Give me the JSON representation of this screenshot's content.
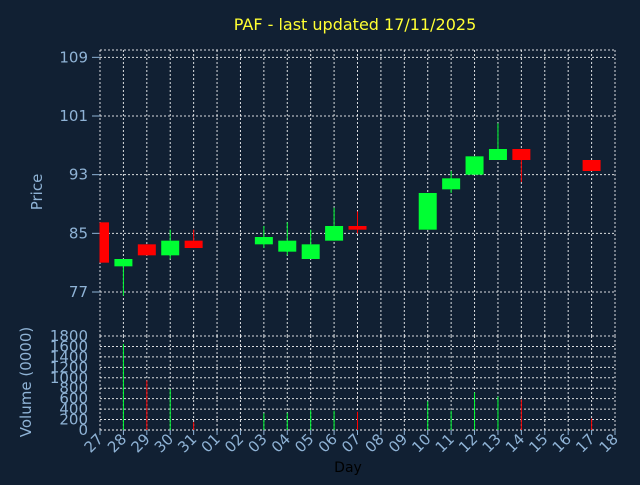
{
  "chart_data": {
    "type": "candlestick",
    "title": "PAF - last updated 17/11/2025",
    "xlabel": "Day",
    "colors": {
      "background": "#112033",
      "up": "#00ff33",
      "down": "#ff0000",
      "grid": "#ffffff",
      "axis_text": "#8fb3d6",
      "title": "#ffff33"
    },
    "x_ticks": [
      "27",
      "28",
      "29",
      "30",
      "31",
      "01",
      "02",
      "03",
      "04",
      "05",
      "06",
      "07",
      "08",
      "09",
      "10",
      "11",
      "12",
      "13",
      "14",
      "15",
      "16",
      "17",
      "18"
    ],
    "price_panel": {
      "ylabel": "Price",
      "ylim": [
        71,
        110
      ],
      "ticks": [
        109,
        101,
        93,
        85,
        77
      ],
      "candles": [
        {
          "x": "27",
          "open": 86.5,
          "high": 86.5,
          "low": 81.0,
          "close": 81.0
        },
        {
          "x": "28",
          "open": 80.5,
          "high": 81.5,
          "low": 76.5,
          "close": 81.5
        },
        {
          "x": "29",
          "open": 83.5,
          "high": 83.5,
          "low": 82.0,
          "close": 82.0
        },
        {
          "x": "30",
          "open": 82.0,
          "high": 85.5,
          "low": 81.5,
          "close": 84.0
        },
        {
          "x": "31",
          "open": 84.0,
          "high": 85.5,
          "low": 83.0,
          "close": 83.0
        },
        {
          "x": "03",
          "open": 83.5,
          "high": 86.0,
          "low": 83.0,
          "close": 84.5
        },
        {
          "x": "04",
          "open": 82.5,
          "high": 86.5,
          "low": 82.0,
          "close": 84.0
        },
        {
          "x": "05",
          "open": 81.5,
          "high": 85.5,
          "low": 81.5,
          "close": 83.5
        },
        {
          "x": "06",
          "open": 84.0,
          "high": 88.5,
          "low": 84.0,
          "close": 86.0
        },
        {
          "x": "07",
          "open": 86.0,
          "high": 88.0,
          "low": 85.0,
          "close": 85.5
        },
        {
          "x": "10",
          "open": 85.5,
          "high": 90.5,
          "low": 85.5,
          "close": 90.5
        },
        {
          "x": "11",
          "open": 91.0,
          "high": 93.5,
          "low": 90.5,
          "close": 92.5
        },
        {
          "x": "12",
          "open": 93.0,
          "high": 95.5,
          "low": 93.0,
          "close": 95.5
        },
        {
          "x": "13",
          "open": 95.0,
          "high": 100.0,
          "low": 95.0,
          "close": 96.5
        },
        {
          "x": "14",
          "open": 96.5,
          "high": 96.5,
          "low": 92.0,
          "close": 95.0
        },
        {
          "x": "17",
          "open": 95.0,
          "high": 95.0,
          "low": 93.5,
          "close": 93.5
        }
      ]
    },
    "volume_panel": {
      "ylabel": "Volume (0000)",
      "ylim": [
        0,
        1800
      ],
      "ticks": [
        1800,
        1600,
        1400,
        1200,
        1000,
        800,
        600,
        400,
        200,
        0
      ],
      "bars": [
        {
          "x": "28",
          "value": 1650,
          "direction": "up"
        },
        {
          "x": "29",
          "value": 950,
          "direction": "down"
        },
        {
          "x": "30",
          "value": 780,
          "direction": "up"
        },
        {
          "x": "31",
          "value": 150,
          "direction": "down"
        },
        {
          "x": "03",
          "value": 320,
          "direction": "up"
        },
        {
          "x": "04",
          "value": 330,
          "direction": "up"
        },
        {
          "x": "05",
          "value": 380,
          "direction": "up"
        },
        {
          "x": "06",
          "value": 370,
          "direction": "up"
        },
        {
          "x": "07",
          "value": 350,
          "direction": "down"
        },
        {
          "x": "10",
          "value": 550,
          "direction": "up"
        },
        {
          "x": "11",
          "value": 370,
          "direction": "up"
        },
        {
          "x": "12",
          "value": 720,
          "direction": "up"
        },
        {
          "x": "13",
          "value": 640,
          "direction": "up"
        },
        {
          "x": "14",
          "value": 580,
          "direction": "down"
        },
        {
          "x": "17",
          "value": 220,
          "direction": "down"
        }
      ]
    }
  }
}
